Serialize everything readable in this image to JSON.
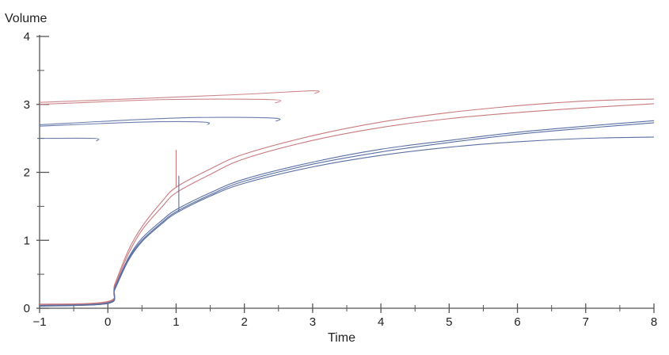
{
  "chart_data": {
    "type": "line",
    "title": "",
    "xlabel": "Time",
    "ylabel": "Volume",
    "xlim": [
      -1,
      8
    ],
    "ylim": [
      0,
      4
    ],
    "x_ticks": [
      -1,
      0,
      1,
      2,
      3,
      4,
      5,
      6,
      7,
      8
    ],
    "x_tick_labels": [
      "−1",
      "0",
      "1",
      "2",
      "3",
      "4",
      "5",
      "6",
      "7",
      "8"
    ],
    "y_ticks": [
      0,
      1,
      2,
      3,
      4
    ],
    "y_tick_labels": [
      "0",
      "1",
      "2",
      "3",
      "4"
    ],
    "grid": false,
    "legend": "none",
    "colors": {
      "red": "#c97a7e",
      "blue": "#5a6fa3",
      "gray": "#8a8f99",
      "axis": "#555555"
    },
    "series": [
      {
        "color": "red",
        "x": [
          -1,
          0,
          0.1,
          0.3,
          0.5,
          0.8,
          1,
          1.5,
          2,
          3,
          4,
          5,
          6,
          7,
          8
        ],
        "y": [
          0.06,
          0.1,
          0.35,
          0.85,
          1.2,
          1.58,
          1.78,
          2.05,
          2.27,
          2.54,
          2.74,
          2.88,
          2.98,
          3.05,
          3.08
        ]
      },
      {
        "color": "red",
        "x": [
          -1,
          0,
          0.1,
          0.3,
          0.5,
          0.8,
          1,
          1.5,
          2,
          3,
          4,
          5,
          6,
          7,
          8
        ],
        "y": [
          0.05,
          0.09,
          0.32,
          0.8,
          1.15,
          1.5,
          1.7,
          1.97,
          2.2,
          2.47,
          2.66,
          2.79,
          2.88,
          2.95,
          3.01
        ]
      },
      {
        "color": "blue",
        "x": [
          -1,
          0,
          0.1,
          0.3,
          0.5,
          0.8,
          1,
          1.5,
          2,
          3,
          4,
          5,
          6,
          7,
          8
        ],
        "y": [
          0.04,
          0.08,
          0.3,
          0.74,
          1.03,
          1.3,
          1.45,
          1.7,
          1.9,
          2.15,
          2.34,
          2.47,
          2.59,
          2.68,
          2.76
        ]
      },
      {
        "color": "blue",
        "x": [
          -1,
          0,
          0.1,
          0.3,
          0.5,
          0.8,
          1,
          1.5,
          2,
          3,
          4,
          5,
          6,
          7,
          8
        ],
        "y": [
          0.04,
          0.07,
          0.28,
          0.72,
          1.0,
          1.27,
          1.42,
          1.67,
          1.87,
          2.12,
          2.3,
          2.44,
          2.56,
          2.65,
          2.73
        ]
      },
      {
        "color": "blue",
        "x": [
          -1,
          0,
          0.1,
          0.3,
          0.5,
          0.8,
          1,
          1.5,
          2,
          3,
          4,
          5,
          6,
          7,
          8
        ],
        "y": [
          0.03,
          0.07,
          0.27,
          0.7,
          0.98,
          1.25,
          1.4,
          1.65,
          1.84,
          2.08,
          2.25,
          2.37,
          2.45,
          2.5,
          2.52
        ]
      }
    ],
    "reference_lines": [
      {
        "color": "red",
        "x": [
          -1,
          1.8,
          3,
          3.03
        ],
        "y": [
          3.03,
          3.14,
          3.2,
          3.16
        ]
      },
      {
        "color": "red",
        "x": [
          -1,
          0.8,
          2.4,
          2.45
        ],
        "y": [
          3.0,
          3.07,
          3.07,
          3.02
        ]
      },
      {
        "color": "blue",
        "x": [
          -1,
          1,
          2.4,
          2.46
        ],
        "y": [
          2.7,
          2.8,
          2.8,
          2.75
        ]
      },
      {
        "color": "blue",
        "x": [
          -1,
          0.5,
          1.4,
          1.46
        ],
        "y": [
          2.68,
          2.74,
          2.74,
          2.7
        ]
      },
      {
        "color": "blue",
        "x": [
          -1,
          -0.2,
          -0.17
        ],
        "y": [
          2.5,
          2.5,
          2.46
        ]
      }
    ],
    "spikes": [
      {
        "color": "red",
        "x": 1,
        "y_from": 1.78,
        "y_to": 2.33
      },
      {
        "color": "blue",
        "x": 1.04,
        "y_from": 1.42,
        "y_to": 1.95
      }
    ]
  }
}
